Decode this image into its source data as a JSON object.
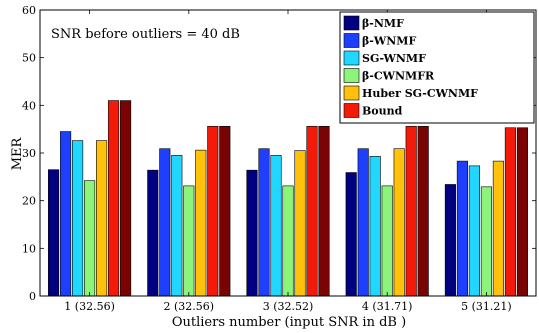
{
  "chart_data": {
    "type": "bar",
    "title": "",
    "xlabel": "Outliers number (input SNR in dB )",
    "ylabel": "MER",
    "ylim": [
      0,
      60
    ],
    "yticks": [
      0,
      10,
      20,
      30,
      40,
      50,
      60
    ],
    "categories": [
      "1 (32.56)",
      "2 (32.56)",
      "3 (32.52)",
      "4 (31.71)",
      "5 (31.21)"
    ],
    "annotation": "SNR before outliers = 40 dB",
    "grid": false,
    "legend_position": "top-right",
    "series": [
      {
        "name": "β-NMF",
        "color": "#000080",
        "values": [
          26.5,
          26.4,
          26.4,
          25.9,
          23.4
        ]
      },
      {
        "name": "β-WNMF",
        "color": "#1f3fff",
        "values": [
          34.5,
          30.9,
          30.9,
          30.9,
          28.3
        ]
      },
      {
        "name": "SG-WNMF",
        "color": "#22d7ff",
        "values": [
          32.6,
          29.5,
          29.5,
          29.3,
          27.3
        ]
      },
      {
        "name": "β-CWNMFR",
        "color": "#8cf47a",
        "values": [
          24.2,
          23.1,
          23.1,
          23.1,
          22.9
        ]
      },
      {
        "name": "Huber SG-CWNMF",
        "color": "#ffc10a",
        "values": [
          32.6,
          30.6,
          30.5,
          30.9,
          28.3
        ]
      },
      {
        "name": "Bound",
        "color": "#f41a0a",
        "values": [
          41.0,
          35.6,
          35.6,
          35.6,
          35.3
        ]
      },
      {
        "name": "",
        "color": "#7a0303",
        "values": [
          41.0,
          35.6,
          35.6,
          35.6,
          35.3
        ]
      }
    ]
  }
}
